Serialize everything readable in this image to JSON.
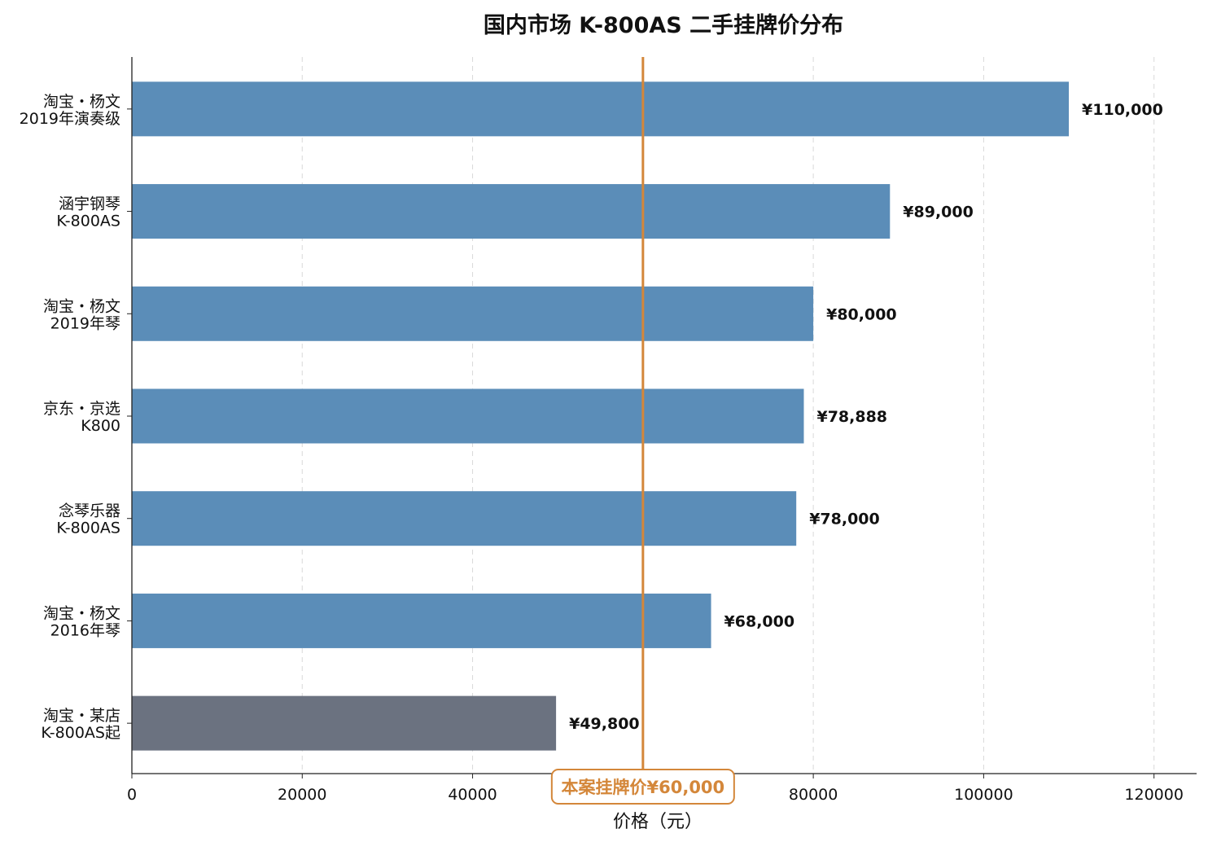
{
  "chart_data": {
    "type": "bar",
    "orientation": "horizontal",
    "title": "国内市场 K-800AS 二手挂牌价分布",
    "xlabel": "价格（元）",
    "ylabel": "",
    "xlim": [
      0,
      125000
    ],
    "xticks": [
      0,
      20000,
      40000,
      60000,
      80000,
      100000,
      120000
    ],
    "xtick_labels": [
      "0",
      "20000",
      "40000",
      "",
      "80000",
      "100000",
      "120000"
    ],
    "grid": "vertical dashed",
    "categories": [
      [
        "淘宝・杨文",
        "2019年演奏级"
      ],
      [
        "涵宇钢琴",
        "K-800AS"
      ],
      [
        "淘宝・杨文",
        "2019年琴"
      ],
      [
        "京东・京选",
        "K800"
      ],
      [
        "念琴乐器",
        "K-800AS"
      ],
      [
        "淘宝・杨文",
        "2016年琴"
      ],
      [
        "淘宝・某店",
        "K-800AS起"
      ]
    ],
    "values": [
      110000,
      89000,
      80000,
      78888,
      78000,
      68000,
      49800
    ],
    "value_labels": [
      "¥110,000",
      "¥89,000",
      "¥80,000",
      "¥78,888",
      "¥78,000",
      "¥68,000",
      "¥49,800"
    ],
    "bar_colors": [
      "#5b8db8",
      "#5b8db8",
      "#5b8db8",
      "#5b8db8",
      "#5b8db8",
      "#5b8db8",
      "#6b7280"
    ],
    "reference_line": {
      "value": 60000,
      "label": "本案挂牌价¥60,000",
      "color": "#d4873a"
    }
  }
}
